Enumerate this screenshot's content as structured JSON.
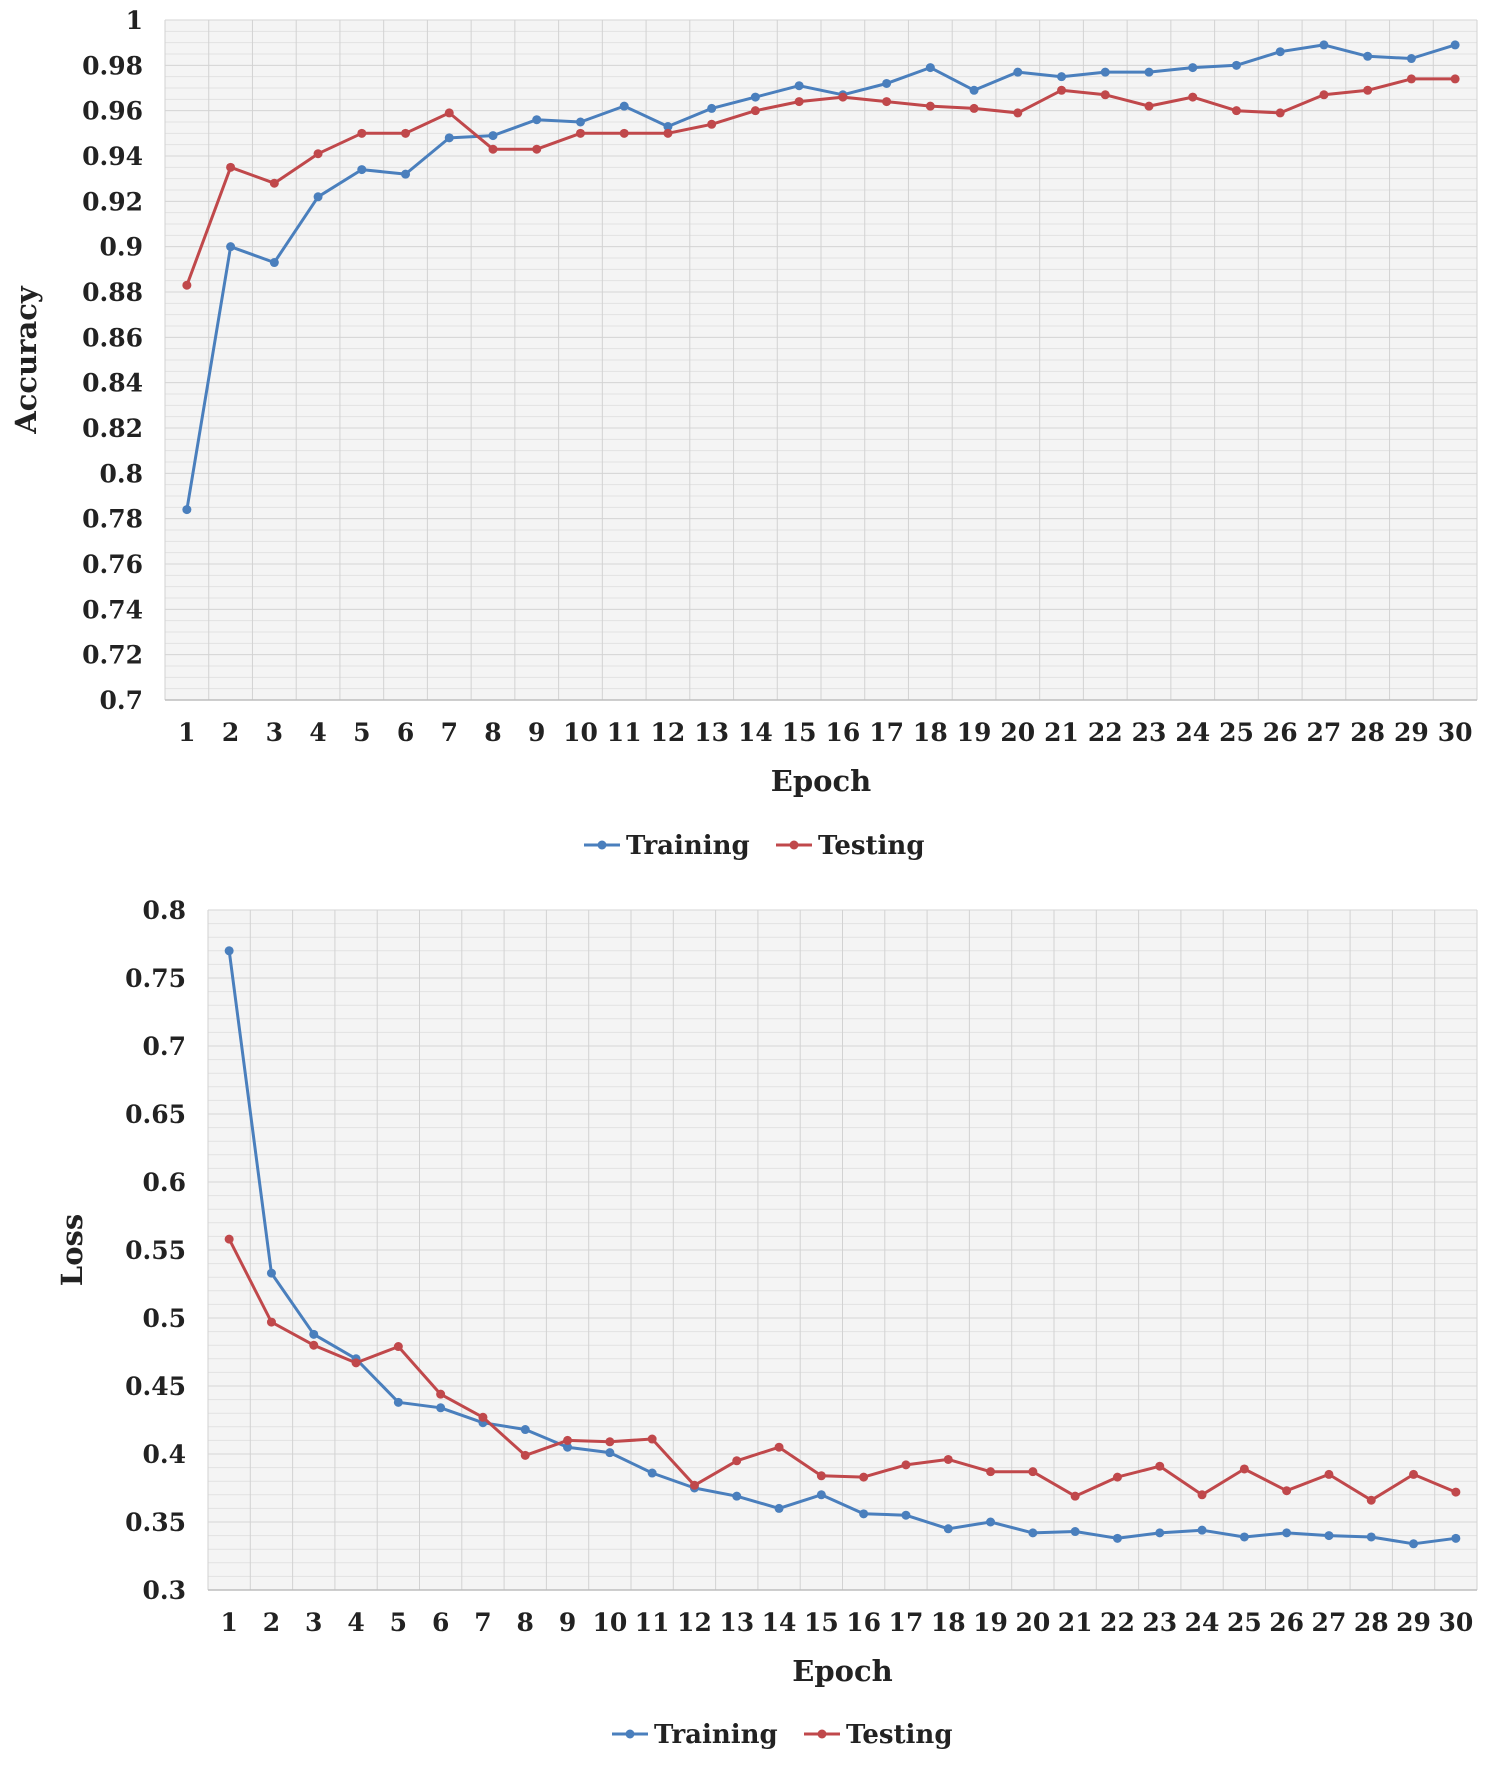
{
  "chart_data": [
    {
      "type": "line",
      "title": "",
      "xlabel": "Epoch",
      "ylabel": "Accuracy",
      "x": [
        1,
        2,
        3,
        4,
        5,
        6,
        7,
        8,
        9,
        10,
        11,
        12,
        13,
        14,
        15,
        16,
        17,
        18,
        19,
        20,
        21,
        22,
        23,
        24,
        25,
        26,
        27,
        28,
        29,
        30
      ],
      "ylim": [
        0.7,
        1.0
      ],
      "yticks": [
        0.7,
        0.72,
        0.74,
        0.76,
        0.78,
        0.8,
        0.82,
        0.84,
        0.86,
        0.88,
        0.9,
        0.92,
        0.94,
        0.96,
        0.98,
        1
      ],
      "ytick_labels": [
        "0.7",
        "0.72",
        "0.74",
        "0.76",
        "0.78",
        "0.8",
        "0.82",
        "0.84",
        "0.86",
        "0.88",
        "0.9",
        "0.92",
        "0.94",
        "0.96",
        "0.98",
        "1"
      ],
      "grid": true,
      "legend_position": "bottom-center",
      "series": [
        {
          "name": "Training",
          "color": "#4a7fbd",
          "values": [
            0.784,
            0.9,
            0.893,
            0.922,
            0.934,
            0.932,
            0.948,
            0.949,
            0.956,
            0.955,
            0.962,
            0.953,
            0.961,
            0.966,
            0.971,
            0.967,
            0.972,
            0.979,
            0.969,
            0.977,
            0.975,
            0.977,
            0.977,
            0.979,
            0.98,
            0.986,
            0.989,
            0.984,
            0.983,
            0.989
          ]
        },
        {
          "name": "Testing",
          "color": "#c0484b",
          "values": [
            0.883,
            0.935,
            0.928,
            0.941,
            0.95,
            0.95,
            0.959,
            0.943,
            0.943,
            0.95,
            0.95,
            0.95,
            0.954,
            0.96,
            0.964,
            0.966,
            0.964,
            0.962,
            0.961,
            0.959,
            0.969,
            0.967,
            0.962,
            0.966,
            0.96,
            0.959,
            0.967,
            0.969,
            0.974,
            0.974
          ]
        }
      ]
    },
    {
      "type": "line",
      "title": "",
      "xlabel": "Epoch",
      "ylabel": "Loss",
      "x": [
        1,
        2,
        3,
        4,
        5,
        6,
        7,
        8,
        9,
        10,
        11,
        12,
        13,
        14,
        15,
        16,
        17,
        18,
        19,
        20,
        21,
        22,
        23,
        24,
        25,
        26,
        27,
        28,
        29,
        30
      ],
      "ylim": [
        0.3,
        0.8
      ],
      "yticks": [
        0.3,
        0.35,
        0.4,
        0.45,
        0.5,
        0.55,
        0.6,
        0.65,
        0.7,
        0.75,
        0.8
      ],
      "ytick_labels": [
        "0.3",
        "0.35",
        "0.4",
        "0.45",
        "0.5",
        "0.55",
        "0.6",
        "0.65",
        "0.7",
        "0.75",
        "0.8"
      ],
      "grid": true,
      "legend_position": "bottom-center",
      "series": [
        {
          "name": "Training",
          "color": "#4a7fbd",
          "values": [
            0.77,
            0.533,
            0.488,
            0.47,
            0.438,
            0.434,
            0.423,
            0.418,
            0.405,
            0.401,
            0.386,
            0.375,
            0.369,
            0.36,
            0.37,
            0.356,
            0.355,
            0.345,
            0.35,
            0.342,
            0.343,
            0.338,
            0.342,
            0.344,
            0.339,
            0.342,
            0.34,
            0.339,
            0.334,
            0.338
          ]
        },
        {
          "name": "Testing",
          "color": "#c0484b",
          "values": [
            0.558,
            0.497,
            0.48,
            0.467,
            0.479,
            0.444,
            0.427,
            0.399,
            0.41,
            0.409,
            0.411,
            0.377,
            0.395,
            0.405,
            0.384,
            0.383,
            0.392,
            0.396,
            0.387,
            0.387,
            0.369,
            0.383,
            0.391,
            0.37,
            0.389,
            0.373,
            0.385,
            0.366,
            0.385,
            0.372
          ]
        }
      ]
    }
  ]
}
